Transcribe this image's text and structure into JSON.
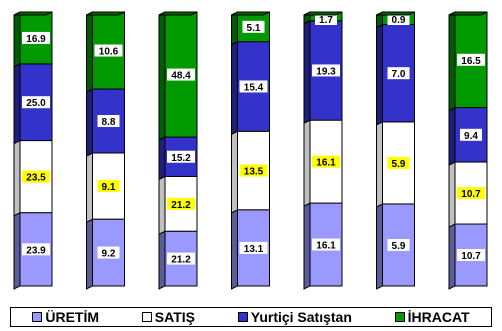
{
  "chart_data": {
    "type": "bar",
    "stacked": true,
    "categories": [
      "",
      "",
      "",
      "",
      "",
      "",
      ""
    ],
    "series": [
      {
        "name": "ÜRETİM",
        "color": "#9999ff",
        "values": [
          23.9,
          9.2,
          21.2,
          13.1,
          16.1,
          5.9,
          10.7
        ]
      },
      {
        "name": "SATIŞ",
        "color": "#ffffff",
        "values": [
          23.5,
          9.1,
          21.2,
          13.5,
          16.1,
          5.9,
          10.7
        ]
      },
      {
        "name": "Yurtiçi Satıştan",
        "color": "#3333cc",
        "values": [
          25.0,
          8.8,
          15.2,
          15.4,
          19.3,
          7.0,
          9.4
        ]
      },
      {
        "name": "İHRACAT",
        "color": "#009900",
        "values": [
          16.9,
          10.6,
          48.4,
          5.1,
          1.7,
          0.9,
          16.5
        ]
      }
    ],
    "label_highlight": {
      "series": "SATIŞ",
      "color": "#ffff00"
    },
    "grid": false,
    "legend_position": "bottom"
  },
  "legend": {
    "items": [
      {
        "label": "ÜRETİM",
        "color": "#9999ff"
      },
      {
        "label": "SATIŞ",
        "color": "#ffffff"
      },
      {
        "label": "Yurtiçi Satıştan",
        "color": "#3333cc"
      },
      {
        "label": "İHRACAT",
        "color": "#009900"
      }
    ]
  }
}
